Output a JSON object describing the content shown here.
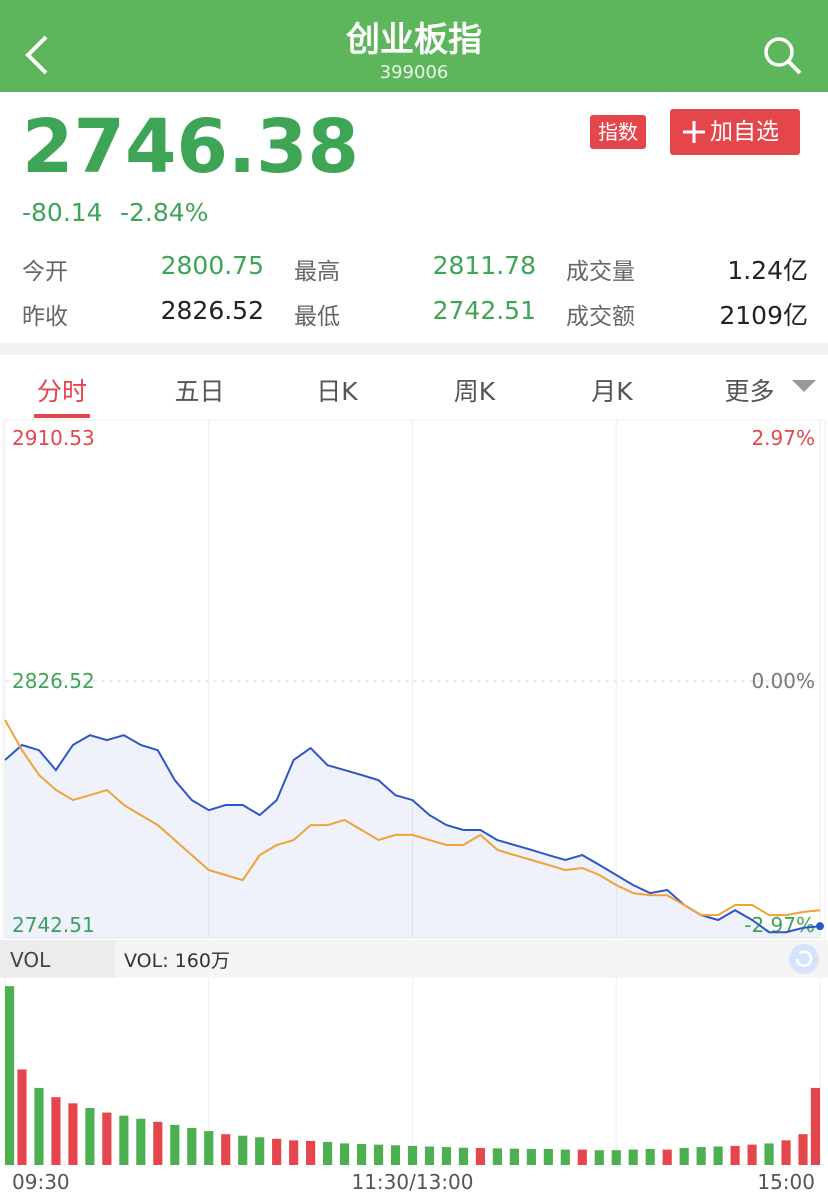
{
  "header": {
    "title": "创业板指",
    "code": "399006"
  },
  "quote": {
    "price": "2746.38",
    "change": "-80.14",
    "change_pct": "-2.84%",
    "badge": "指数",
    "watch_button": "加自选"
  },
  "stats": [
    [
      {
        "label": "今开",
        "value": "2800.75",
        "color": "#3fa556"
      },
      {
        "label": "最高",
        "value": "2811.78",
        "color": "#3fa556"
      },
      {
        "label": "成交量",
        "value": "1.24亿",
        "color": "#222"
      }
    ],
    [
      {
        "label": "昨收",
        "value": "2826.52",
        "color": "#222"
      },
      {
        "label": "最低",
        "value": "2742.51",
        "color": "#3fa556"
      },
      {
        "label": "成交额",
        "value": "2109亿",
        "color": "#222"
      }
    ]
  ],
  "tabs": [
    "分时",
    "五日",
    "日K",
    "周K",
    "月K",
    "更多"
  ],
  "active_tab": 0,
  "chart_data": [
    {
      "type": "line",
      "area": true,
      "x": [
        0,
        5,
        10,
        15,
        20,
        25,
        30,
        35,
        40,
        45,
        50,
        55,
        60,
        65,
        70,
        75,
        80,
        85,
        90,
        95,
        100,
        105,
        110,
        115,
        120,
        125,
        130,
        135,
        140,
        145,
        150,
        155,
        160,
        165,
        170,
        175,
        180,
        185,
        190,
        195,
        200,
        205,
        210,
        215,
        220,
        225,
        230,
        235,
        240
      ],
      "series": [
        {
          "color": "#2f56c8",
          "values": [
            2800.7,
            2805.6,
            2803.9,
            2797.4,
            2805.6,
            2808.8,
            2807.2,
            2808.8,
            2805.6,
            2803.9,
            2794.1,
            2787.6,
            2784.3,
            2786.0,
            2786.0,
            2782.7,
            2787.6,
            2800.7,
            2804.6,
            2799.0,
            2797.4,
            2795.8,
            2794.1,
            2789.2,
            2787.6,
            2782.7,
            2779.4,
            2777.8,
            2777.8,
            2774.5,
            2772.9,
            2771.3,
            2769.6,
            2768.0,
            2769.6,
            2766.4,
            2763.1,
            2759.8,
            2757.2,
            2758.2,
            2753.3,
            2750.0,
            2748.4,
            2751.6,
            2748.4,
            2744.4,
            2744.4,
            2745.8,
            2746.38
          ]
        },
        {
          "color": "#f0a236",
          "values": [
            2813.8,
            2803.9,
            2795.8,
            2790.9,
            2787.6,
            2789.2,
            2790.9,
            2786.0,
            2782.7,
            2779.4,
            2774.5,
            2769.6,
            2764.7,
            2763.1,
            2761.4,
            2769.6,
            2772.9,
            2774.5,
            2779.4,
            2779.4,
            2781.1,
            2777.8,
            2774.5,
            2776.2,
            2776.2,
            2774.5,
            2772.9,
            2772.9,
            2776.2,
            2771.3,
            2769.6,
            2768.0,
            2766.4,
            2764.7,
            2765.4,
            2763.1,
            2759.8,
            2757.2,
            2756.5,
            2756.5,
            2753.3,
            2750.0,
            2750.0,
            2753.3,
            2753.3,
            2750.0,
            2750.0,
            2751.0,
            2751.6
          ]
        }
      ],
      "xlim": [
        0,
        240
      ],
      "xticks": [
        {
          "value": 0,
          "label": "09:30"
        },
        {
          "value": 120,
          "label": "11:30/13:00"
        },
        {
          "value": 240,
          "label": "15:00"
        }
      ],
      "ylim": [
        2742.51,
        2910.53
      ],
      "yticks": [
        2742.51,
        2826.52,
        2910.53
      ],
      "y2lim": [
        -2.97,
        2.97
      ],
      "y2ticks": [
        {
          "value": -2.97,
          "label": "-2.97%"
        },
        {
          "value": 0,
          "label": "0.00%"
        },
        {
          "value": 2.97,
          "label": "2.97%"
        }
      ]
    },
    {
      "type": "bar",
      "label": "VOL",
      "title": "VOL: 160万",
      "x": [
        0,
        5,
        10,
        15,
        20,
        25,
        30,
        35,
        40,
        45,
        50,
        55,
        60,
        65,
        70,
        75,
        80,
        85,
        90,
        95,
        100,
        105,
        110,
        115,
        120,
        125,
        130,
        135,
        140,
        145,
        150,
        155,
        160,
        165,
        170,
        175,
        180,
        185,
        190,
        195,
        200,
        205,
        210,
        215,
        220,
        225,
        230,
        235,
        240
      ],
      "values": [
        580,
        310,
        250,
        220,
        200,
        185,
        170,
        160,
        150,
        140,
        130,
        120,
        110,
        100,
        95,
        90,
        85,
        80,
        78,
        75,
        70,
        68,
        66,
        64,
        62,
        60,
        58,
        56,
        55,
        54,
        53,
        52,
        52,
        50,
        50,
        48,
        48,
        50,
        52,
        50,
        55,
        58,
        60,
        62,
        66,
        70,
        80,
        100,
        250
      ],
      "colors": [
        "#4caf50",
        "#e4464c",
        "#4caf50",
        "#e4464c",
        "#e4464c",
        "#4caf50",
        "#e4464c",
        "#4caf50",
        "#4caf50",
        "#e4464c",
        "#4caf50",
        "#4caf50",
        "#4caf50",
        "#e4464c",
        "#4caf50",
        "#4caf50",
        "#e4464c",
        "#e4464c",
        "#e4464c",
        "#4caf50",
        "#4caf50",
        "#4caf50",
        "#4caf50",
        "#4caf50",
        "#4caf50",
        "#4caf50",
        "#4caf50",
        "#4caf50",
        "#e4464c",
        "#4caf50",
        "#4caf50",
        "#4caf50",
        "#4caf50",
        "#4caf50",
        "#e4464c",
        "#4caf50",
        "#4caf50",
        "#4caf50",
        "#4caf50",
        "#e4464c",
        "#4caf50",
        "#4caf50",
        "#4caf50",
        "#e4464c",
        "#e4464c",
        "#4caf50",
        "#e4464c",
        "#e4464c",
        "#e4464c"
      ],
      "ylim": [
        0,
        600
      ]
    }
  ]
}
